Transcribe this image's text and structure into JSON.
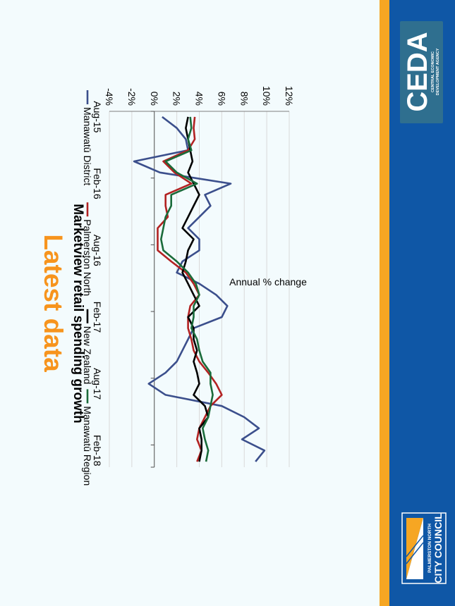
{
  "slide": {
    "heading": "Latest data",
    "heading_color": "#f7941d",
    "bar_accent_color": "#f6a623",
    "bar_brand_color": "#0f57a6"
  },
  "logos": {
    "ceda": {
      "name": "CEDA",
      "tagline_line1": "CENTRAL ECONOMIC",
      "tagline_line2": "DEVELOPMENT AGENCY",
      "bg_color": "#2f6f8f"
    },
    "council": {
      "line1": "PALMERSTON NORTH",
      "line2": "CITY COUNCIL"
    }
  },
  "chart_data": {
    "type": "line",
    "orientation": "rotated-90-clockwise",
    "title": "Marketview retail spending growth",
    "ylabel": "Annual % change",
    "xlabel": "",
    "ylim": [
      -4,
      12
    ],
    "yticks": [
      "-4%",
      "-2%",
      "0%",
      "2%",
      "4%",
      "6%",
      "8%",
      "10%",
      "12%"
    ],
    "ytick_values": [
      -4,
      -2,
      0,
      2,
      4,
      6,
      8,
      10,
      12
    ],
    "xticks": [
      "Aug-15",
      "Feb-16",
      "Aug-16",
      "Feb-17",
      "Aug-17",
      "Feb-18"
    ],
    "xtick_positions": [
      0,
      6,
      12,
      18,
      24,
      30
    ],
    "x_count": 32,
    "grid": true,
    "legend_position": "top",
    "series": [
      {
        "name": "Manawatū District",
        "color": "#3b4f8c",
        "values": [
          0.7,
          2.0,
          2.8,
          3.0,
          -1.8,
          0.5,
          6.8,
          4.5,
          5.0,
          4.0,
          3.0,
          4.0,
          4.0,
          2.5,
          2.0,
          4.0,
          5.5,
          6.5,
          6.0,
          3.5,
          3.0,
          2.5,
          2.0,
          1.0,
          -0.5,
          1.0,
          6.0,
          8.0,
          9.3,
          7.8,
          9.8,
          9.0
        ]
      },
      {
        "name": "Palmerston North",
        "color": "#b22222",
        "values": [
          3.6,
          3.5,
          3.6,
          3.0,
          0.8,
          1.8,
          3.3,
          1.0,
          1.0,
          1.2,
          0.3,
          0.3,
          0.3,
          1.5,
          2.8,
          3.5,
          4.0,
          3.2,
          3.0,
          3.0,
          3.3,
          3.5,
          4.0,
          4.8,
          5.5,
          6.0,
          5.0,
          4.5,
          4.0,
          3.8,
          4.2,
          3.8
        ]
      },
      {
        "name": "New Zealand",
        "color": "#000000",
        "values": [
          3.0,
          2.8,
          3.0,
          3.2,
          3.4,
          3.0,
          3.5,
          4.0,
          3.5,
          3.0,
          2.5,
          3.5,
          3.0,
          2.8,
          2.5,
          3.0,
          3.5,
          4.0,
          3.0,
          3.5,
          3.5,
          3.8,
          3.5,
          3.8,
          4.0,
          3.5,
          4.5,
          4.8,
          4.0,
          4.2,
          4.2,
          4.0
        ]
      },
      {
        "name": "Manawatū Region",
        "color": "#1a6b3a",
        "values": [
          3.2,
          3.3,
          3.0,
          3.3,
          1.0,
          2.0,
          3.8,
          1.5,
          1.5,
          1.0,
          0.8,
          0.6,
          0.8,
          2.0,
          3.0,
          3.7,
          4.0,
          3.5,
          3.5,
          3.3,
          3.8,
          4.0,
          4.3,
          5.0,
          5.0,
          5.2,
          5.0,
          4.8,
          4.3,
          4.5,
          4.8,
          4.6
        ]
      }
    ]
  }
}
